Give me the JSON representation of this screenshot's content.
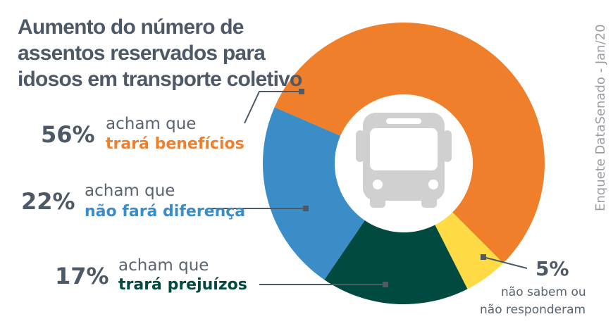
{
  "chart_data": {
    "type": "pie",
    "title": "Aumento do número de assentos reservados para idosos em transporte coletivo",
    "slices": [
      {
        "value": 56,
        "label": "56%",
        "prefix": "acham que",
        "text": "trará benefícios",
        "color": "#ef7f2a"
      },
      {
        "value": 5,
        "label": "5%",
        "prefix": "não sabem ou",
        "text": "não responderam",
        "color": "#fedb44"
      },
      {
        "value": 17,
        "label": "17%",
        "prefix": "acham que",
        "text": "trará prejuízos",
        "color": "#014a40"
      },
      {
        "value": 22,
        "label": "22%",
        "prefix": "acham que",
        "text": "não fará diferença",
        "color": "#3a8dc6"
      }
    ],
    "center_icon": "bus-icon",
    "source": "Enquete DataSenado - Jan/20"
  }
}
